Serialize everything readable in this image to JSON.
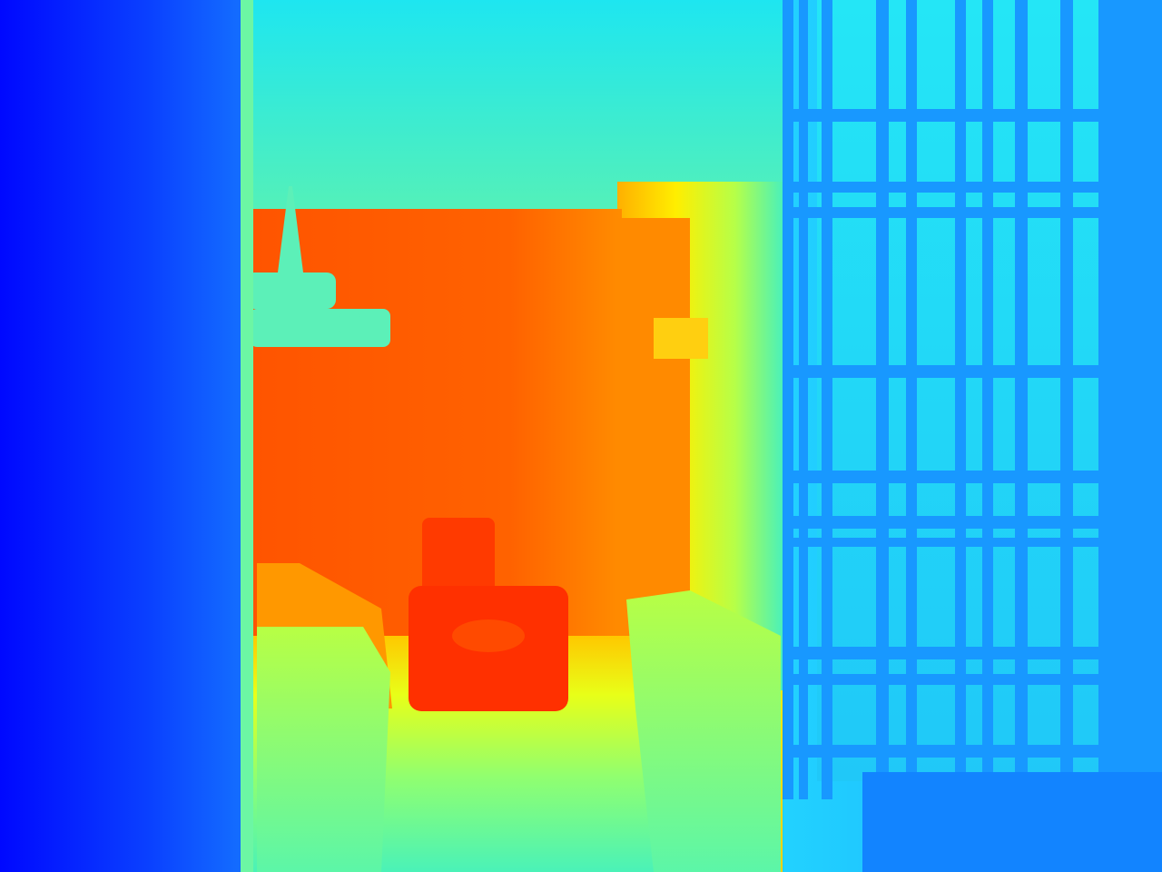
{
  "image": {
    "kind": "depth-map-colormap",
    "colormap": "jet",
    "palette": {
      "near": "#0008ff",
      "mid_near": "#1e90ff",
      "mid": "#2ef0d0",
      "mid_far": "#ffff00",
      "far": "#ff5a00",
      "farthest": "#ff3300"
    }
  },
  "regions": {
    "left_wall": "wall-near-left",
    "doorway": "doorway-frame",
    "back_room": "far-room",
    "chandelier": "chandelier",
    "side_table": "round-side-table",
    "armchair": "armchair",
    "window_grid": "window-lattice",
    "floor": "floor"
  }
}
